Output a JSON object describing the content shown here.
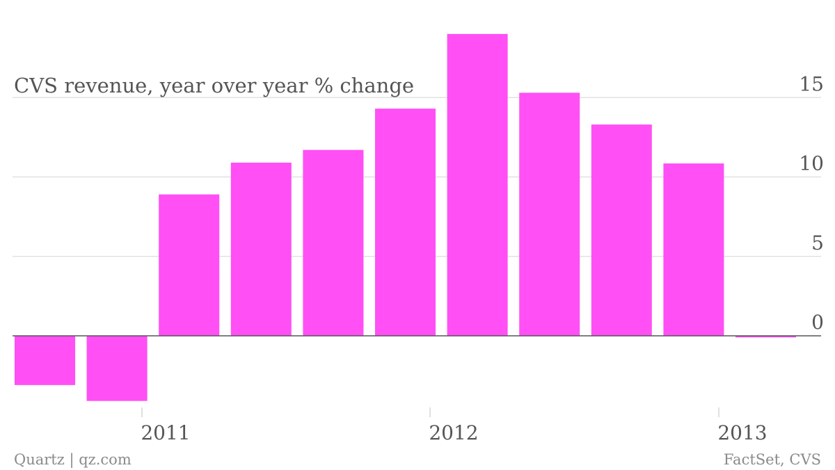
{
  "chart_data": {
    "type": "bar",
    "title": "CVS revenue, year over year % change",
    "xlabel": "",
    "ylabel": "",
    "x_tick_labels": [
      "2011",
      "2012",
      "2013"
    ],
    "y_ticks": [
      0,
      5,
      10,
      15
    ],
    "y_tick_labels": [
      "0",
      "5",
      "10",
      "15"
    ],
    "ylim": [
      -5.6,
      19.5
    ],
    "grid": true,
    "bar_color": "#ff4ff5",
    "series": [
      {
        "values": [
          -3.1,
          -4.1,
          8.9,
          10.9,
          11.7,
          14.3,
          19.0,
          15.3,
          13.3,
          10.85,
          -0.1
        ]
      }
    ]
  },
  "footer": {
    "left": "Quartz | qz.com",
    "right": "FactSet, CVS"
  }
}
